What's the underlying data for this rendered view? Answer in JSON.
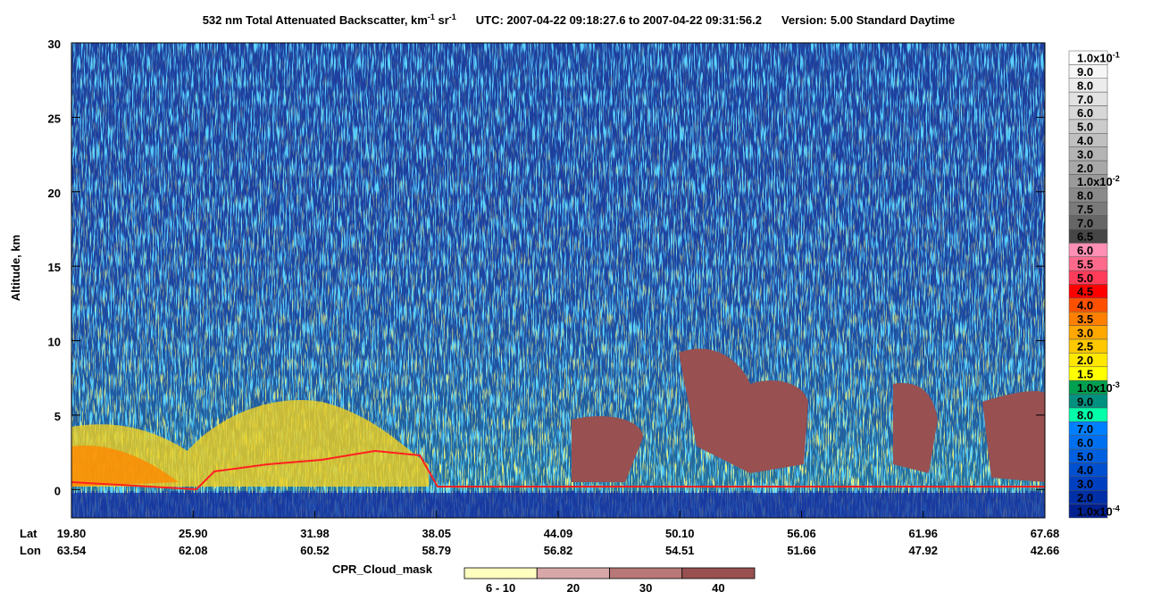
{
  "chart_data": {
    "type": "heatmap",
    "title": {
      "main": "532 nm Total Attenuated Backscatter, km",
      "sup1": "-1",
      "unit2": " sr",
      "sup2": "-1",
      "utc": "UTC:  2007-04-22 09:18:27.6  to  2007-04-22 09:31:56.2",
      "version": "Version: 5.00  Standard  Daytime"
    },
    "ylabel": "Altitude, km",
    "ylim": [
      -1.9,
      30
    ],
    "yticks": [
      0,
      5,
      10,
      15,
      20,
      25,
      30
    ],
    "x_rows": [
      {
        "name": "Lat",
        "labels": [
          "19.80",
          "25.90",
          "31.98",
          "38.05",
          "44.09",
          "50.10",
          "56.06",
          "61.96",
          "67.68"
        ]
      },
      {
        "name": "Lon",
        "labels": [
          "63.54",
          "62.08",
          "60.52",
          "58.79",
          "56.82",
          "54.51",
          "51.66",
          "47.92",
          "42.66"
        ]
      }
    ],
    "colorbar": [
      {
        "label": "1.0x10",
        "sup": "-1",
        "color": "#ffffff"
      },
      {
        "label": "9.0",
        "color": "#f6f6f6"
      },
      {
        "label": "8.0",
        "color": "#ececec"
      },
      {
        "label": "7.0",
        "color": "#e2e2e2"
      },
      {
        "label": "6.0",
        "color": "#d7d7d7"
      },
      {
        "label": "5.0",
        "color": "#cccccc"
      },
      {
        "label": "4.0",
        "color": "#c0c0c0"
      },
      {
        "label": "3.0",
        "color": "#b4b4b4"
      },
      {
        "label": "2.0",
        "color": "#a8a8a8"
      },
      {
        "label": "1.0x10",
        "sup": "-2",
        "color": "#9a9a9a"
      },
      {
        "label": "8.0",
        "color": "#8a8a8a"
      },
      {
        "label": "7.5",
        "color": "#7a7a7a"
      },
      {
        "label": "7.0",
        "color": "#666666"
      },
      {
        "label": "6.5",
        "color": "#464646"
      },
      {
        "label": "6.0",
        "color": "#ff8fb4"
      },
      {
        "label": "5.5",
        "color": "#ff6a8c"
      },
      {
        "label": "5.0",
        "color": "#ff3c5a"
      },
      {
        "label": "4.5",
        "color": "#ff0000"
      },
      {
        "label": "4.0",
        "color": "#ff5000"
      },
      {
        "label": "3.5",
        "color": "#ff8000"
      },
      {
        "label": "3.0",
        "color": "#ffa800"
      },
      {
        "label": "2.5",
        "color": "#ffc800"
      },
      {
        "label": "2.0",
        "color": "#ffe800"
      },
      {
        "label": "1.5",
        "color": "#ffff00"
      },
      {
        "label": "1.0x10",
        "sup": "-3",
        "color": "#00a050"
      },
      {
        "label": "9.0",
        "color": "#009080"
      },
      {
        "label": "8.0",
        "color": "#00ffa8"
      },
      {
        "label": "7.0",
        "color": "#0080ff"
      },
      {
        "label": "6.0",
        "color": "#0070f0"
      },
      {
        "label": "5.0",
        "color": "#0060e0"
      },
      {
        "label": "4.0",
        "color": "#0050d0"
      },
      {
        "label": "3.0",
        "color": "#0040c0"
      },
      {
        "label": "2.0",
        "color": "#0030a8"
      },
      {
        "label": "1.0x10",
        "sup": "-4",
        "color": "#002090"
      }
    ],
    "cpr_legend": {
      "title": "CPR_Cloud_mask",
      "items": [
        {
          "label": "6 - 10",
          "color": "#ffffc0"
        },
        {
          "label": "20",
          "color": "#d8a8a8"
        },
        {
          "label": "30",
          "color": "#b87878"
        },
        {
          "label": "40",
          "color": "#985050"
        }
      ]
    }
  }
}
